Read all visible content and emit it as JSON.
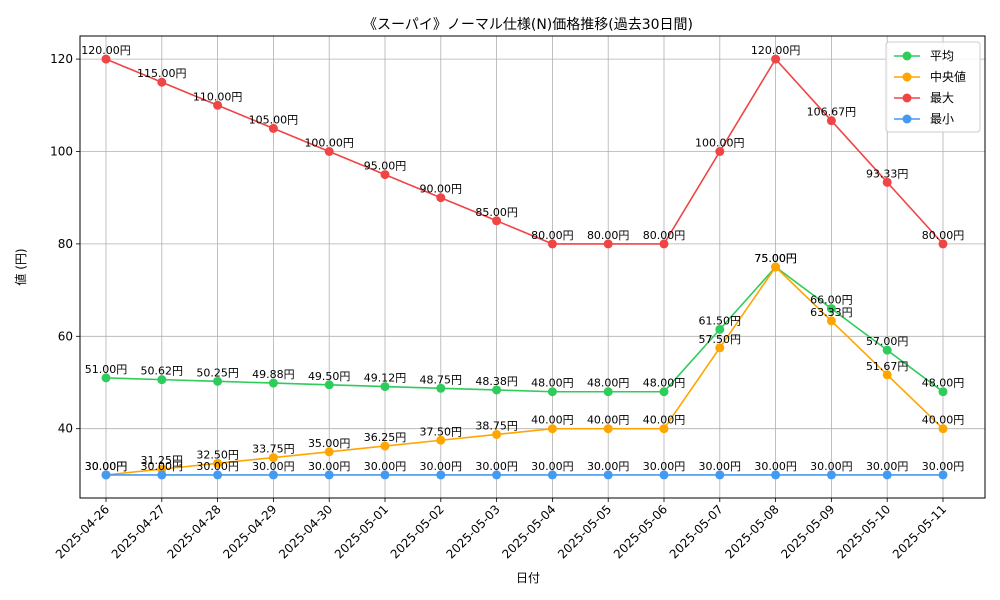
{
  "chart_data": {
    "type": "line",
    "title": "《スーパイ》ノーマル仕様(N)価格推移(過去30日間)",
    "xlabel": "日付",
    "ylabel": "値 (円)",
    "ylim": [
      25,
      125
    ],
    "yticks": [
      40,
      60,
      80,
      100,
      120
    ],
    "grid": true,
    "legend_position": "top-right",
    "categories": [
      "2025-04-26",
      "2025-04-27",
      "2025-04-28",
      "2025-04-29",
      "2025-04-30",
      "2025-05-01",
      "2025-05-02",
      "2025-05-03",
      "2025-05-04",
      "2025-05-05",
      "2025-05-06",
      "2025-05-07",
      "2025-05-08",
      "2025-05-09",
      "2025-05-10",
      "2025-05-11"
    ],
    "series": [
      {
        "name": "平均",
        "color": "#2ecc5a",
        "values": [
          51.0,
          50.62,
          50.25,
          49.88,
          49.5,
          49.12,
          48.75,
          48.38,
          48.0,
          48.0,
          48.0,
          61.5,
          75.0,
          66.0,
          57.0,
          48.0
        ]
      },
      {
        "name": "中央値",
        "color": "#ffa500",
        "values": [
          30.0,
          31.25,
          32.5,
          33.75,
          35.0,
          36.25,
          37.5,
          38.75,
          40.0,
          40.0,
          40.0,
          57.5,
          75.0,
          63.33,
          51.67,
          40.0
        ]
      },
      {
        "name": "最大",
        "color": "#f04545",
        "values": [
          120.0,
          115.0,
          110.0,
          105.0,
          100.0,
          95.0,
          90.0,
          85.0,
          80.0,
          80.0,
          80.0,
          100.0,
          120.0,
          106.67,
          93.33,
          80.0
        ]
      },
      {
        "name": "最小",
        "color": "#4499f0",
        "values": [
          30.0,
          30.0,
          30.0,
          30.0,
          30.0,
          30.0,
          30.0,
          30.0,
          30.0,
          30.0,
          30.0,
          30.0,
          30.0,
          30.0,
          30.0,
          30.0
        ]
      }
    ],
    "label_suffix": "円"
  }
}
